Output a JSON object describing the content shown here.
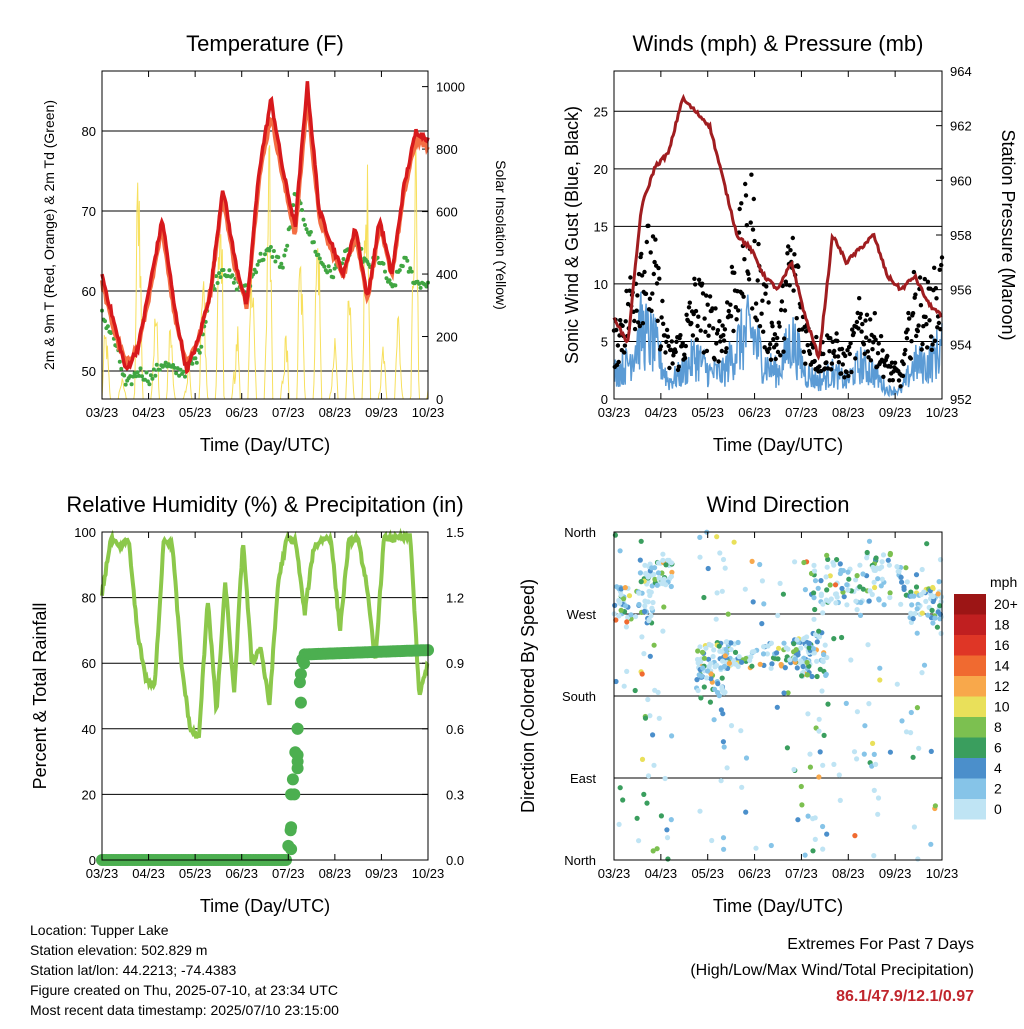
{
  "chart_data": [
    {
      "type": "line",
      "title": "Temperature (F)",
      "xlabel": "Time (Day/UTC)",
      "ylabel": "2m & 9m T (Red, Orange) & 2m Td (Green)",
      "y2label": "Solar Insolation (Yellow)",
      "x_ticks": [
        "03/23",
        "04/23",
        "05/23",
        "06/23",
        "07/23",
        "08/23",
        "09/23",
        "10/23"
      ],
      "ylim": [
        46.5,
        87.5
      ],
      "y_ticks": [
        50,
        60,
        70,
        80
      ],
      "y2lim": [
        0,
        1050
      ],
      "y2_ticks": [
        0,
        200,
        400,
        600,
        800,
        1000
      ],
      "grid": "horizontal",
      "series": [
        {
          "color": "#d7191c",
          "values": [
            62,
            56,
            50,
            53,
            61,
            69,
            58,
            50,
            54,
            60,
            73,
            64,
            58,
            75,
            84,
            75,
            68,
            86,
            70,
            66,
            62,
            68,
            59,
            69,
            62,
            73,
            80,
            79
          ]
        },
        {
          "color": "#f46d43",
          "values": [
            61,
            55,
            51,
            53,
            60,
            68,
            57,
            51,
            54,
            60,
            72,
            63,
            58,
            74,
            82,
            74,
            67,
            84,
            69,
            65,
            62,
            67,
            59,
            68,
            62,
            72,
            79,
            78
          ]
        },
        {
          "color": "#40a642",
          "values": [
            57,
            54,
            48,
            50,
            49,
            51,
            50,
            50,
            52,
            60,
            63,
            61,
            60,
            64,
            65,
            63,
            72,
            68,
            64,
            62,
            64,
            66,
            63,
            64,
            60,
            64,
            61,
            61
          ]
        },
        {
          "color": "#f7e05e",
          "values": [
            300,
            100,
            50,
            900,
            40,
            700,
            60,
            40,
            650,
            40,
            900,
            80,
            950,
            50,
            1000,
            70,
            850,
            90,
            700,
            50,
            650,
            40,
            900,
            60,
            600,
            40,
            950,
            100
          ]
        }
      ]
    },
    {
      "type": "scatter",
      "title": "Winds (mph) & Pressure (mb)",
      "xlabel": "Time (Day/UTC)",
      "ylabel": "Sonic Wind & Gust (Blue, Black)",
      "y2label": "Station Pressure (Maroon)",
      "x_ticks": [
        "03/23",
        "04/23",
        "05/23",
        "06/23",
        "07/23",
        "08/23",
        "09/23",
        "10/23"
      ],
      "ylim": [
        0,
        28.5
      ],
      "y_ticks": [
        0,
        5,
        10,
        15,
        20,
        25
      ],
      "y2lim": [
        952,
        964
      ],
      "y2_ticks": [
        952,
        954,
        956,
        958,
        960,
        962,
        964
      ],
      "grid": "horizontal",
      "series": [
        {
          "color": "#a01d20",
          "values": [
            955,
            954,
            959,
            960.5,
            961,
            963,
            962.5,
            962,
            960,
            958,
            957.5,
            956.5,
            956,
            957,
            955,
            953.5,
            958,
            957,
            957.5,
            958,
            956.5,
            956,
            956.5,
            955.5,
            955
          ]
        },
        {
          "color": "#000000",
          "values": [
            5,
            8,
            13,
            11,
            4,
            5,
            9,
            7,
            6,
            12,
            16,
            8,
            5,
            13,
            6,
            4,
            5,
            3,
            7,
            6,
            3,
            2,
            9,
            8,
            10
          ]
        },
        {
          "color": "#5b9bd5",
          "values": [
            3,
            4,
            8,
            6,
            2,
            3,
            5,
            3,
            3,
            6,
            8,
            4,
            3,
            7,
            3,
            2,
            3,
            2,
            4,
            3,
            1,
            1,
            4,
            4,
            6
          ]
        }
      ]
    },
    {
      "type": "line",
      "title": "Relative Humidity (%) & Precipitation (in)",
      "xlabel": "Time (Day/UTC)",
      "ylabel": "Percent & Total Rainfall",
      "x_ticks": [
        "03/23",
        "04/23",
        "05/23",
        "06/23",
        "07/23",
        "08/23",
        "09/23",
        "10/23"
      ],
      "ylim": [
        0,
        100
      ],
      "y_ticks": [
        0,
        20,
        40,
        60,
        80,
        100
      ],
      "y2lim": [
        0,
        1.5
      ],
      "y2_ticks": [
        "0.0",
        "0.3",
        "0.6",
        "0.9",
        "1.2",
        "1.5"
      ],
      "grid": "horizontal",
      "series": [
        {
          "color": "#8cc84b",
          "values": [
            81,
            98,
            95,
            98,
            70,
            55,
            53,
            98,
            96,
            60,
            40,
            37,
            80,
            45,
            85,
            50,
            98,
            60,
            65,
            47,
            85,
            98,
            97,
            75,
            95,
            98,
            98,
            70,
            97,
            98,
            85,
            60,
            98,
            98,
            98,
            99,
            50,
            60
          ]
        },
        {
          "color": "#4caf50",
          "points": [
            [
              0,
              0
            ],
            [
              0.57,
              0
            ],
            [
              0.57,
              0.05
            ],
            [
              0.58,
              0.15
            ],
            [
              0.58,
              0.25
            ],
            [
              0.58,
              0.3
            ],
            [
              0.59,
              0.42
            ],
            [
              0.59,
              0.45
            ],
            [
              0.6,
              0.6
            ],
            [
              0.6,
              0.72
            ],
            [
              0.61,
              0.85
            ],
            [
              0.61,
              0.9
            ],
            [
              0.62,
              0.94
            ],
            [
              1,
              0.96
            ]
          ]
        }
      ]
    },
    {
      "type": "scatter",
      "title": "Wind Direction",
      "xlabel": "Time (Day/UTC)",
      "ylabel": "Direction (Colored By Speed)",
      "x_ticks": [
        "03/23",
        "04/23",
        "05/23",
        "06/23",
        "07/23",
        "08/23",
        "09/23",
        "10/23"
      ],
      "y_ticks": [
        "North",
        "East",
        "South",
        "West",
        "North"
      ],
      "ylim": [
        0,
        360
      ],
      "grid": "horizontal",
      "colorbar": {
        "title": "mph",
        "labels": [
          "0",
          "2",
          "4",
          "6",
          "8",
          "10",
          "12",
          "14",
          "16",
          "18",
          "20+"
        ],
        "colors": [
          "#bfe4f4",
          "#86c4e8",
          "#4b8fcb",
          "#3a9e5e",
          "#7cc050",
          "#e9e05a",
          "#f8a84b",
          "#f06a30",
          "#df3626",
          "#c01f20",
          "#9c1515"
        ]
      }
    }
  ],
  "info": {
    "location": "Location: Tupper Lake",
    "elevation": "Station elevation: 502.829 m",
    "latlon": "Station lat/lon: 44.2213; -74.4383",
    "created": "Figure created on Thu, 2025-07-10, at 23:34 UTC",
    "recent": "Most recent data timestamp: 2025/07/10 23:15:00"
  },
  "extremes": {
    "title": "Extremes For Past 7 Days",
    "subtitle": "(High/Low/Max Wind/Total Precipitation)",
    "values": "86.1/47.9/12.1/0.97"
  }
}
